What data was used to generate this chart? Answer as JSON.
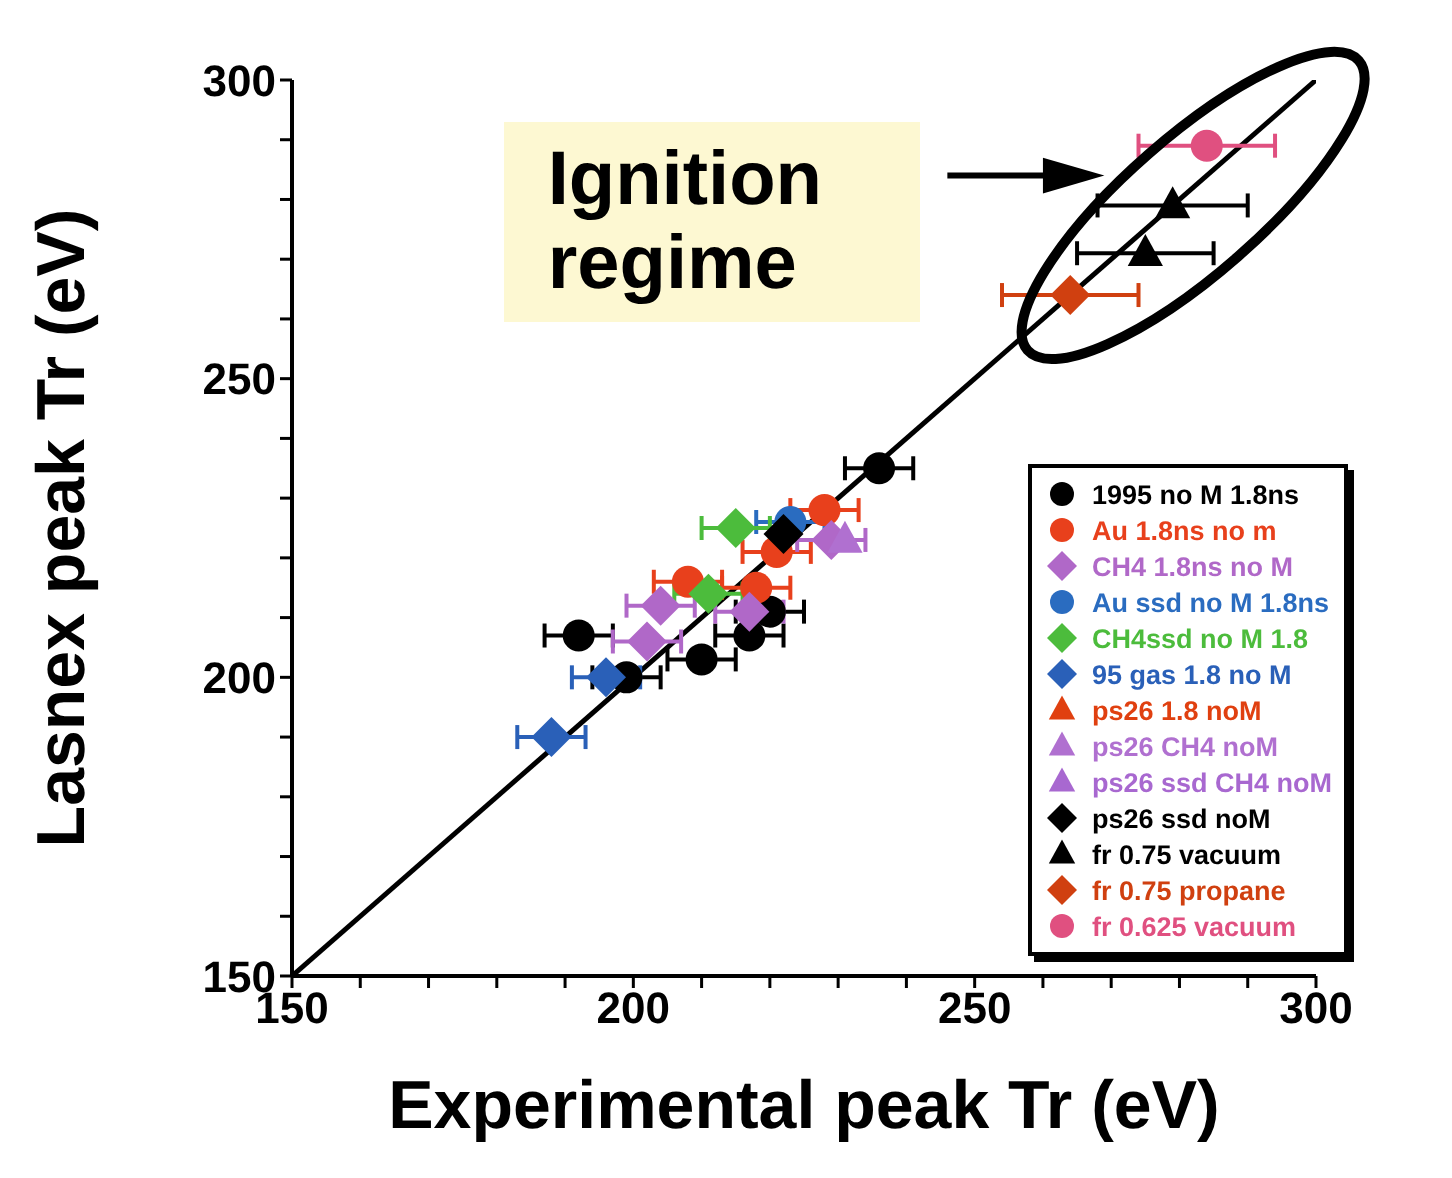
{
  "chart_data": {
    "type": "scatter",
    "xlabel": "Experimental peak Tr (eV)",
    "ylabel": "Lasnex peak Tr (eV)",
    "xlim": [
      150,
      300
    ],
    "ylim": [
      150,
      300
    ],
    "xticks": [
      150,
      {
        "value": 160,
        "label": null
      },
      {
        "value": 170,
        "label": null
      },
      {
        "value": 180,
        "label": null
      },
      {
        "value": 190,
        "label": null
      },
      200,
      {
        "value": 210,
        "label": null
      },
      {
        "value": 220,
        "label": null
      },
      {
        "value": 230,
        "label": null
      },
      {
        "value": 240,
        "label": null
      },
      250,
      {
        "value": 260,
        "label": null
      },
      {
        "value": 270,
        "label": null
      },
      {
        "value": 280,
        "label": null
      },
      {
        "value": 290,
        "label": null
      },
      300
    ],
    "yticks": [
      150,
      {
        "value": 160,
        "label": null
      },
      {
        "value": 170,
        "label": null
      },
      {
        "value": 180,
        "label": null
      },
      {
        "value": 190,
        "label": null
      },
      200,
      {
        "value": 210,
        "label": null
      },
      {
        "value": 220,
        "label": null
      },
      {
        "value": 230,
        "label": null
      },
      {
        "value": 240,
        "label": null
      },
      250,
      {
        "value": 260,
        "label": null
      },
      {
        "value": 270,
        "label": null
      },
      {
        "value": 280,
        "label": null
      },
      {
        "value": 290,
        "label": null
      },
      300
    ],
    "grid": false,
    "legend": "bottom right",
    "annotations": [
      "Ignition regime"
    ],
    "series": [
      {
        "type": "line",
        "color": "#000000",
        "x": [
          150,
          300
        ],
        "values": [
          150,
          300
        ],
        "marker": "none"
      },
      {
        "name": "1995 no M 1.8ns",
        "color": "#000000",
        "marker": "circle",
        "x": [
          236,
          192,
          199,
          210,
          217,
          220
        ],
        "values": [
          235,
          207,
          200,
          203,
          207,
          211
        ],
        "xerrors": [
          5,
          5,
          5,
          5,
          5,
          5
        ]
      },
      {
        "name": "Au 1.8ns no m",
        "color": "#e8401c",
        "marker": "circle",
        "x": [
          208,
          218,
          228,
          221
        ],
        "values": [
          216,
          215,
          228,
          221
        ],
        "xerrors": [
          5,
          5,
          5,
          5
        ]
      },
      {
        "name": "CH4 1.8ns no M",
        "color": "#b068c8",
        "marker": "diamond",
        "x": [
          204,
          202,
          217,
          229
        ],
        "values": [
          212,
          206,
          211,
          223
        ],
        "xerrors": [
          5,
          5,
          5,
          5
        ]
      },
      {
        "name": "Au ssd no M 1.8ns",
        "color": "#2a6cc0",
        "marker": "circle",
        "x": [
          223
        ],
        "values": [
          226
        ],
        "xerrors": [
          5
        ]
      },
      {
        "name": "CH4ssd no M 1.8",
        "color": "#4cbc3c",
        "marker": "diamond",
        "x": [
          215,
          211
        ],
        "values": [
          225,
          214
        ],
        "xerrors": [
          5,
          5
        ]
      },
      {
        "name": "95 gas 1.8 no M",
        "color": "#2a60b8",
        "marker": "diamond",
        "x": [
          196,
          188
        ],
        "values": [
          200,
          190
        ],
        "xerrors": [
          5,
          5
        ]
      },
      {
        "name": "ps26 1.8 noM",
        "color": "#e04010",
        "marker": "triangle",
        "x": [
          null
        ],
        "values": [
          null
        ]
      },
      {
        "name": "ps26 CH4 noM",
        "color": "#b070d0",
        "marker": "triangle",
        "x": [
          231
        ],
        "values": [
          223
        ]
      },
      {
        "name": "ps26 ssd CH4 noM",
        "color": "#a868d0",
        "marker": "triangle",
        "x": [
          null
        ],
        "values": [
          null
        ]
      },
      {
        "name": "ps26 ssd noM",
        "color": "#000000",
        "marker": "diamond",
        "x": [
          222
        ],
        "values": [
          224
        ]
      },
      {
        "name": "fr 0.75 vacuum",
        "color": "#000000",
        "marker": "triangle",
        "x": [
          279,
          275
        ],
        "values": [
          279,
          271
        ],
        "xerrors": [
          11,
          10
        ]
      },
      {
        "name": "fr 0.75 propane",
        "color": "#d04010",
        "marker": "diamond",
        "x": [
          264
        ],
        "values": [
          264
        ],
        "xerrors": [
          10
        ]
      },
      {
        "name": "fr 0.625 vacuum",
        "color": "#e05080",
        "marker": "circle",
        "x": [
          284
        ],
        "values": [
          289
        ],
        "xerrors": [
          10
        ]
      }
    ]
  }
}
